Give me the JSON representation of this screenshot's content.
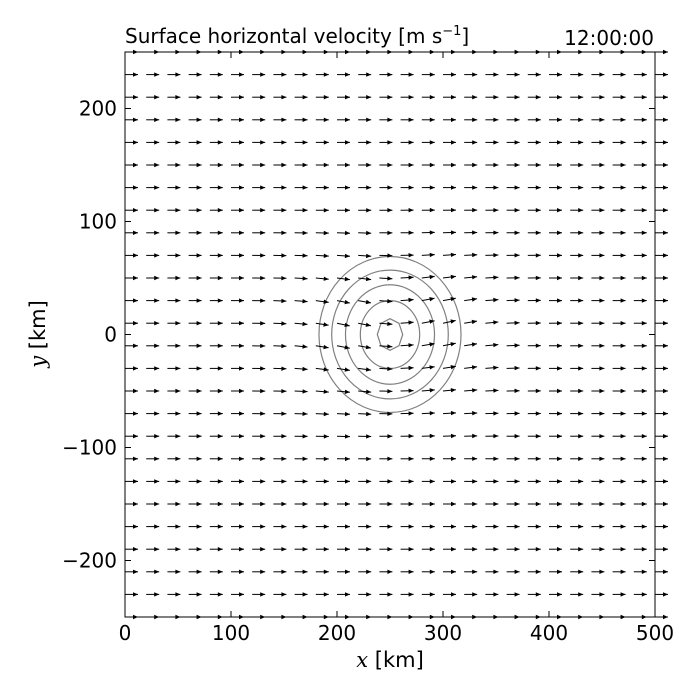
{
  "chart_data": {
    "type": "vector-field-contour",
    "title": "Surface horizontal velocity [m s",
    "title_exponent": "−1",
    "title_close": "]",
    "time_label": "12:00:00",
    "xlabel_var": "x",
    "xlabel_unit": " [km]",
    "ylabel_var": "y",
    "ylabel_unit": " [km]",
    "xlim": [
      0,
      500
    ],
    "ylim": [
      -250,
      250
    ],
    "xticks": [
      0,
      100,
      200,
      300,
      400,
      500
    ],
    "xtick_labels": [
      "0",
      "100",
      "200",
      "300",
      "400",
      "500"
    ],
    "yticks": [
      -200,
      -100,
      0,
      100,
      200
    ],
    "ytick_labels": [
      "−200",
      "−100",
      "0",
      "100",
      "200"
    ],
    "vector_grid": {
      "x_start": 0,
      "x_step": 20,
      "x_count": 26,
      "y_start": -250,
      "y_step": 20,
      "y_count": 26
    },
    "vortex_center": [
      250,
      0
    ],
    "contour_rings_km": [
      {
        "rx": 12,
        "ry": 14
      },
      {
        "rx": 28,
        "ry": 30
      },
      {
        "rx": 42,
        "ry": 44
      },
      {
        "rx": 55,
        "ry": 57
      },
      {
        "rx": 67,
        "ry": 69
      }
    ],
    "arrow_color": "#000000",
    "contour_color": "#808080"
  }
}
